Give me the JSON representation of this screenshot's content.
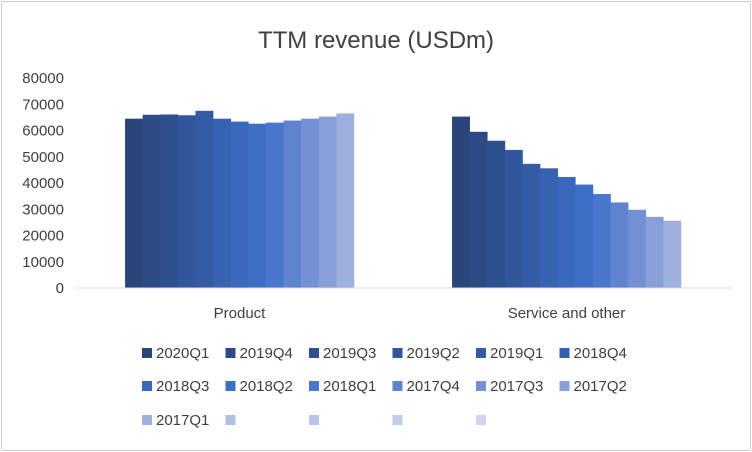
{
  "chart_data": {
    "type": "bar",
    "title": "TTM revenue (USDm)",
    "xlabel": "",
    "ylabel": "",
    "ylim": [
      0,
      80000
    ],
    "yticks": [
      0,
      10000,
      20000,
      30000,
      40000,
      50000,
      60000,
      70000,
      80000
    ],
    "grid": false,
    "legend_position": "bottom",
    "categories": [
      "Product",
      "Service and other"
    ],
    "series": [
      {
        "name": "2020Q1",
        "color": "#2a4579",
        "values": [
          64500,
          65300
        ]
      },
      {
        "name": "2019Q4",
        "color": "#2c4b84",
        "values": [
          66000,
          59500
        ]
      },
      {
        "name": "2019Q3",
        "color": "#2f5090",
        "values": [
          66100,
          56100
        ]
      },
      {
        "name": "2019Q2",
        "color": "#31569b",
        "values": [
          65800,
          52600
        ]
      },
      {
        "name": "2019Q1",
        "color": "#345ca6",
        "values": [
          67500,
          47300
        ]
      },
      {
        "name": "2018Q4",
        "color": "#3762b2",
        "values": [
          64500,
          45600
        ]
      },
      {
        "name": "2018Q3",
        "color": "#3a68bd",
        "values": [
          63400,
          42300
        ]
      },
      {
        "name": "2018Q2",
        "color": "#3f6ec7",
        "values": [
          62600,
          39400
        ]
      },
      {
        "name": "2018Q1",
        "color": "#4a77cd",
        "values": [
          63000,
          35800
        ]
      },
      {
        "name": "2017Q4",
        "color": "#5e83cf",
        "values": [
          63800,
          32600
        ]
      },
      {
        "name": "2017Q3",
        "color": "#7290d3",
        "values": [
          64500,
          29800
        ]
      },
      {
        "name": "2017Q2",
        "color": "#889fd7",
        "values": [
          65300,
          27100
        ]
      },
      {
        "name": "2017Q1",
        "color": "#9eb0dd",
        "values": [
          66500,
          25600
        ]
      }
    ],
    "legend_extra_swatches": [
      "#b0c0e3",
      "#b8c6e6",
      "#c2cde9",
      "#ccd5ed"
    ]
  }
}
